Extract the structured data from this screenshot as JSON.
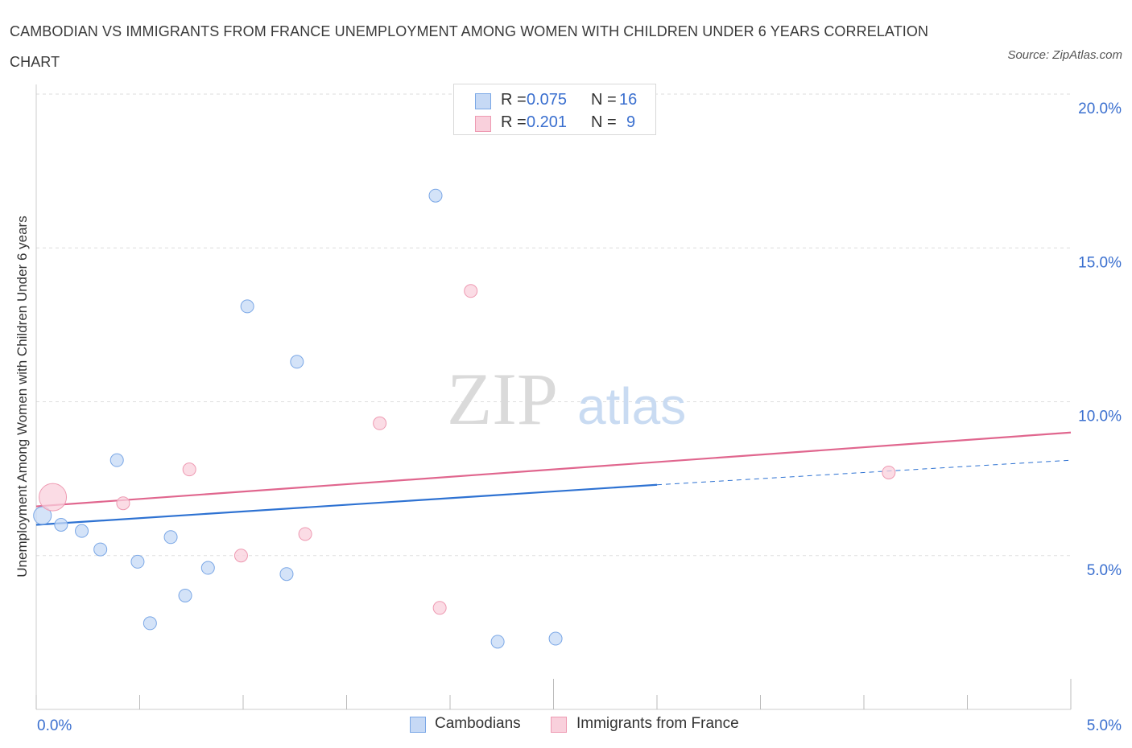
{
  "header": {
    "title": "CAMBODIAN VS IMMIGRANTS FROM FRANCE UNEMPLOYMENT AMONG WOMEN WITH CHILDREN UNDER 6 YEARS CORRELATION CHART",
    "source": "Source: ZipAtlas.com"
  },
  "watermark": {
    "zip": "ZIP",
    "atlas": "atlas"
  },
  "legend_top": {
    "rows": [
      {
        "r_label": "R =",
        "r_value": "0.075",
        "n_label": "N =",
        "n_value": "16"
      },
      {
        "r_label": "R =",
        "r_value": "0.201",
        "n_label": "N =",
        "n_value": "9"
      }
    ]
  },
  "legend_bottom": {
    "series1": "Cambodians",
    "series2": "Immigrants from France"
  },
  "colors": {
    "blue_fill": "#c6d9f5",
    "blue_stroke": "#7aa7e6",
    "blue_line": "#2e72d2",
    "pink_fill": "#f9d0dc",
    "pink_stroke": "#ee9ab2",
    "pink_line": "#e0668e",
    "tick_text": "#3a6fcf",
    "grid": "#dddddd",
    "axis": "#cccccc"
  },
  "chart_data": {
    "type": "scatter",
    "title": "CAMBODIAN VS IMMIGRANTS FROM FRANCE UNEMPLOYMENT AMONG WOMEN WITH CHILDREN UNDER 6 YEARS CORRELATION CHART",
    "xlabel": "",
    "ylabel": "Unemployment Among Women with Children Under 6 years",
    "xlim": [
      0,
      5
    ],
    "ylim": [
      0,
      20
    ],
    "x_ticks": [
      {
        "value": 0,
        "label": "0.0%"
      },
      {
        "value": 5,
        "label": "5.0%"
      }
    ],
    "y_ticks": [
      {
        "value": 5,
        "label": "5.0%"
      },
      {
        "value": 10,
        "label": "10.0%"
      },
      {
        "value": 15,
        "label": "15.0%"
      },
      {
        "value": 20,
        "label": "20.0%"
      }
    ],
    "series": [
      {
        "name": "Cambodians",
        "r": 0.075,
        "n": 16,
        "points": [
          {
            "x": 0.03,
            "y": 6.3,
            "size": 11
          },
          {
            "x": 0.12,
            "y": 6.0,
            "size": 8
          },
          {
            "x": 0.22,
            "y": 5.8,
            "size": 8
          },
          {
            "x": 0.31,
            "y": 5.2,
            "size": 8
          },
          {
            "x": 0.39,
            "y": 8.1,
            "size": 8
          },
          {
            "x": 0.49,
            "y": 4.8,
            "size": 8
          },
          {
            "x": 0.55,
            "y": 2.8,
            "size": 8
          },
          {
            "x": 0.65,
            "y": 5.6,
            "size": 8
          },
          {
            "x": 0.72,
            "y": 3.7,
            "size": 8
          },
          {
            "x": 0.83,
            "y": 4.6,
            "size": 8
          },
          {
            "x": 1.02,
            "y": 13.1,
            "size": 8
          },
          {
            "x": 1.21,
            "y": 4.4,
            "size": 8
          },
          {
            "x": 1.26,
            "y": 11.3,
            "size": 8
          },
          {
            "x": 1.93,
            "y": 16.7,
            "size": 8
          },
          {
            "x": 2.23,
            "y": 2.2,
            "size": 8
          },
          {
            "x": 2.51,
            "y": 2.3,
            "size": 8
          }
        ],
        "trend": {
          "x0": 0.0,
          "y0": 6.0,
          "x1": 3.0,
          "y1": 7.3,
          "dash_to_x": 5.0,
          "dash_to_y": 8.1
        }
      },
      {
        "name": "Immigrants from France",
        "r": 0.201,
        "n": 9,
        "points": [
          {
            "x": 0.08,
            "y": 6.9,
            "size": 17
          },
          {
            "x": 0.42,
            "y": 6.7,
            "size": 8
          },
          {
            "x": 0.74,
            "y": 7.8,
            "size": 8
          },
          {
            "x": 0.99,
            "y": 5.0,
            "size": 8
          },
          {
            "x": 1.3,
            "y": 5.7,
            "size": 8
          },
          {
            "x": 1.66,
            "y": 9.3,
            "size": 8
          },
          {
            "x": 1.95,
            "y": 3.3,
            "size": 8
          },
          {
            "x": 2.1,
            "y": 13.6,
            "size": 8
          },
          {
            "x": 4.12,
            "y": 7.7,
            "size": 8
          }
        ],
        "trend": {
          "x0": 0.0,
          "y0": 6.6,
          "x1": 5.0,
          "y1": 9.0
        }
      }
    ]
  }
}
